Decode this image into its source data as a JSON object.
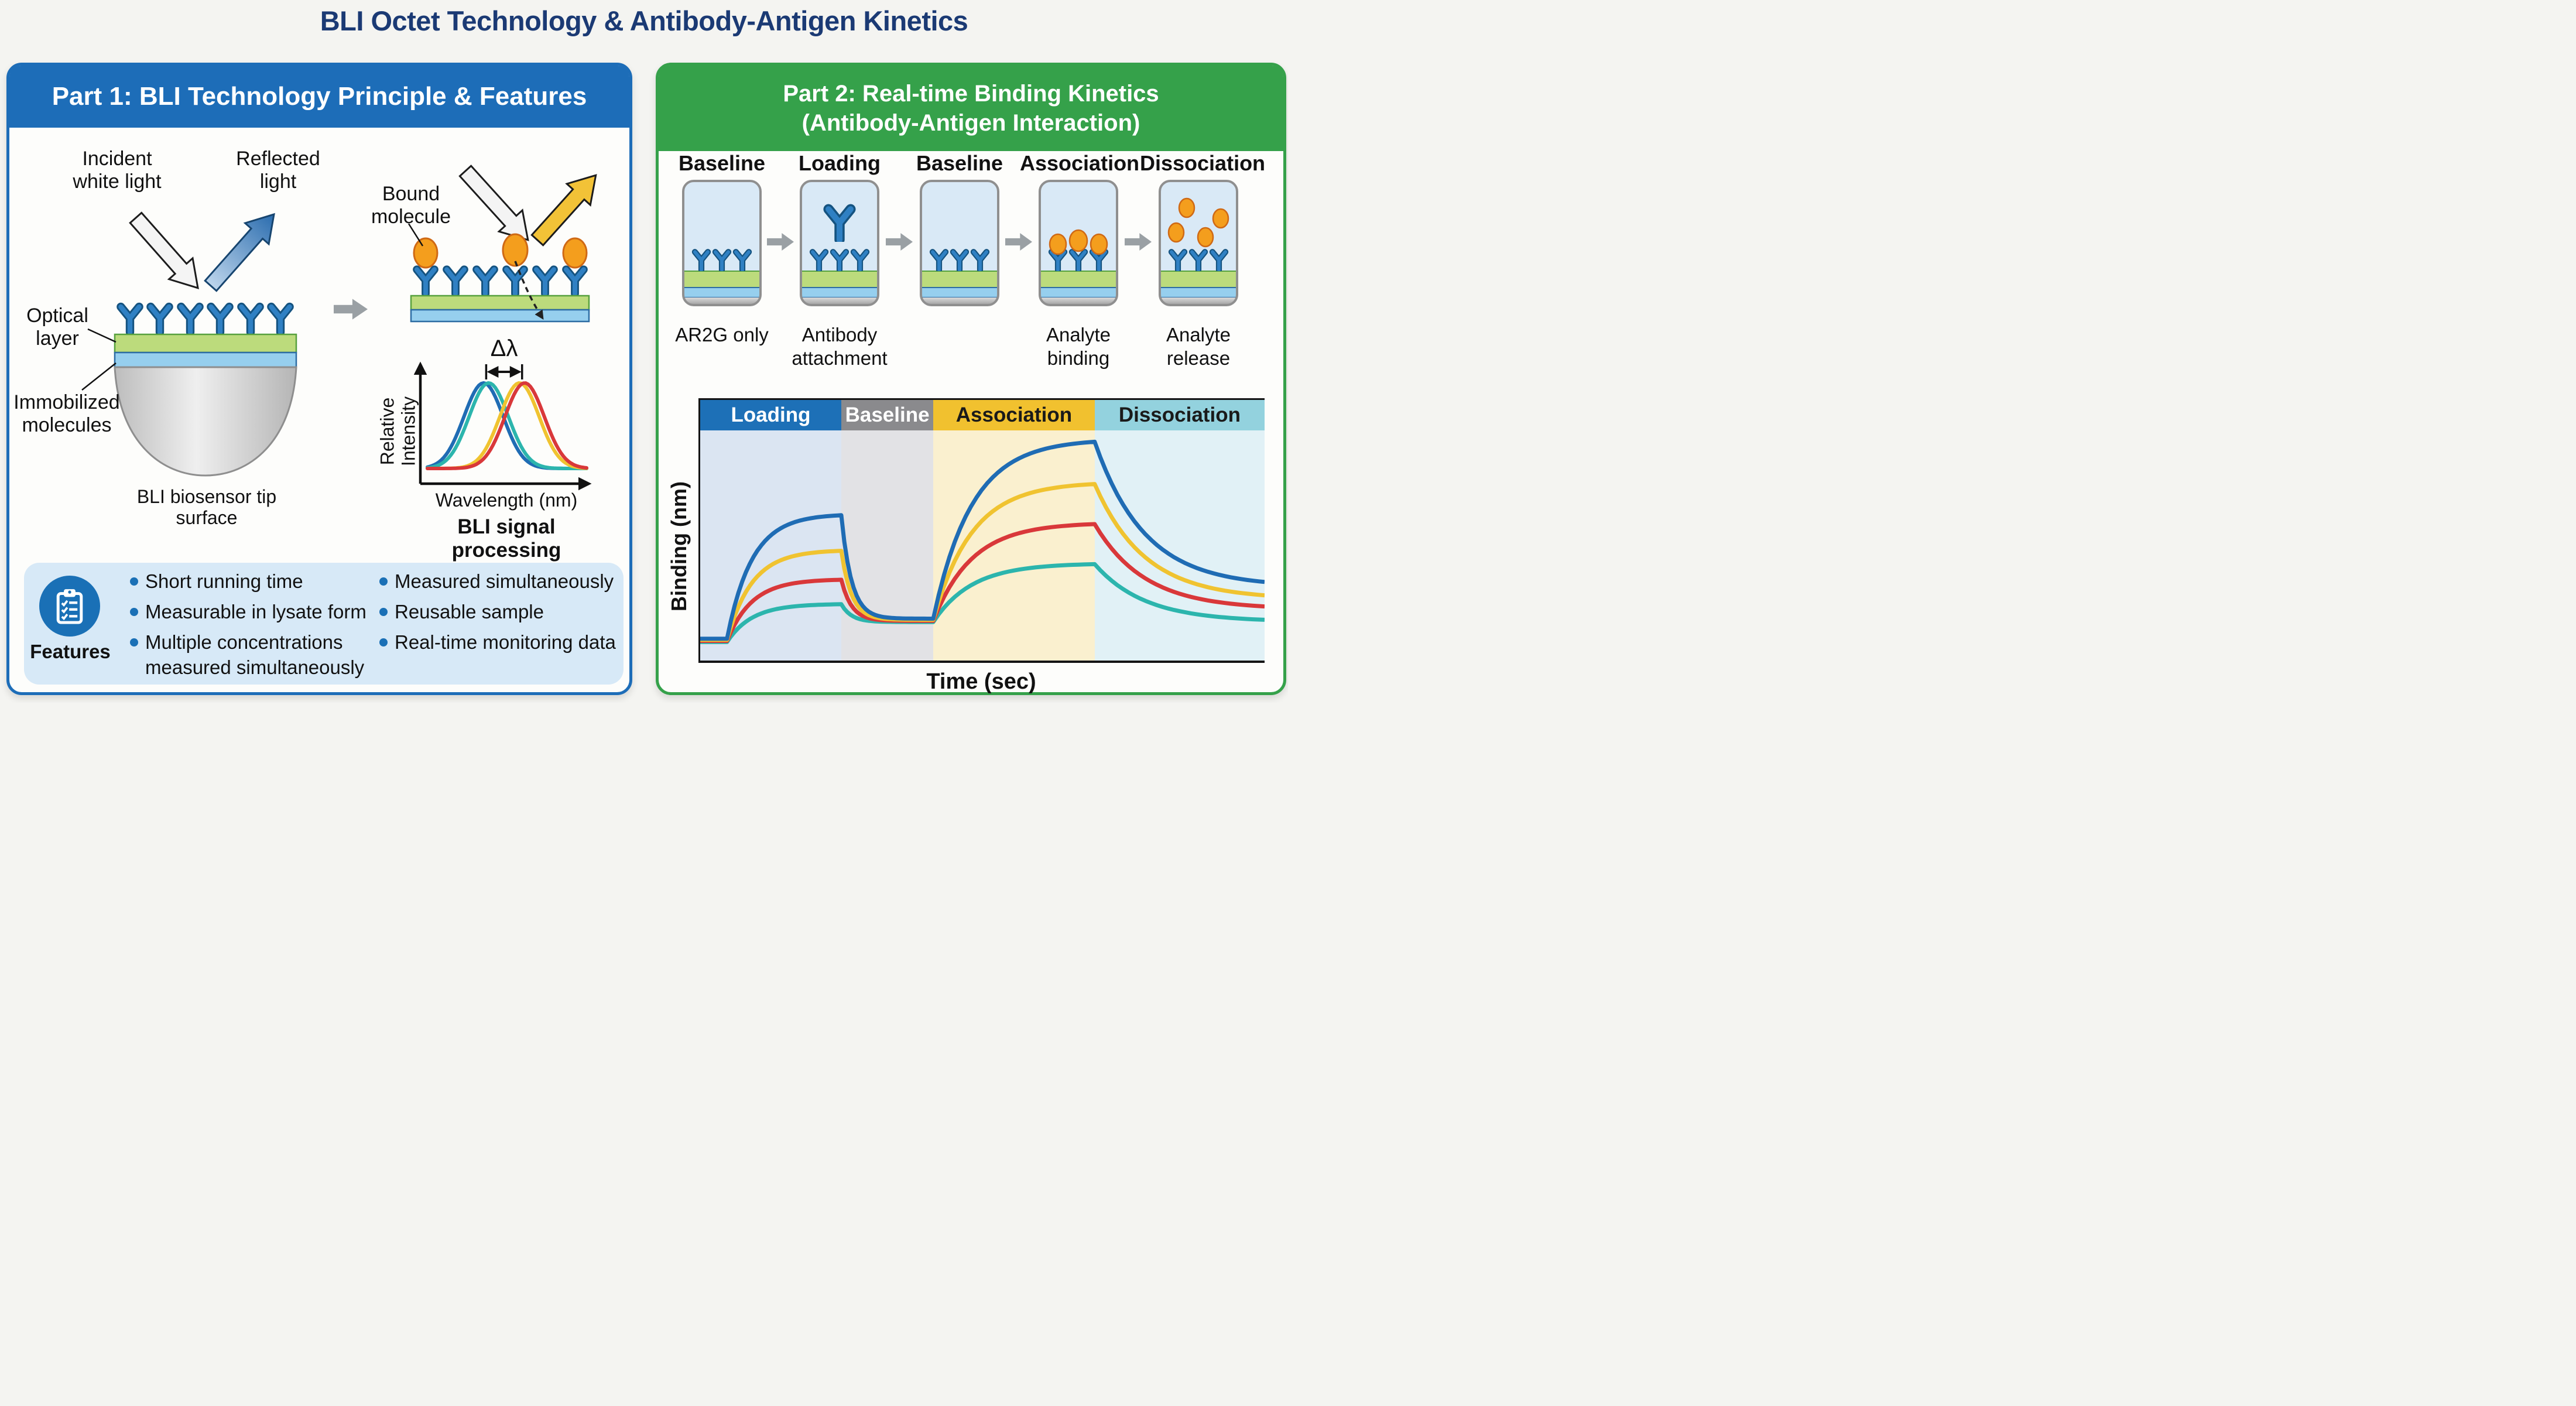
{
  "title": "BLI Octet Technology & Antibody-Antigen Kinetics",
  "colors": {
    "title_text": "#1b3a74",
    "part1_accent": "#1d6db8",
    "part2_accent": "#35a14a",
    "features_bg": "#d7e9f7",
    "antibody_blue": "#2f80c3",
    "analyte_orange": "#f49e1d",
    "optical_layer_green": "#bcdb7c",
    "inner_layer_blue": "#96cfee"
  },
  "part1": {
    "header": "Part 1: BLI Technology Principle & Features",
    "labels": {
      "incident": "Incident\nwhite light",
      "reflected": "Reflected\nlight",
      "optical": "Optical\nlayer",
      "immobilized": "Immobilized\nmolecules",
      "tip_caption": "BLI biosensor tip\nsurface",
      "bound": "Bound\nmolecule",
      "signal_caption": "BLI signal processing"
    },
    "features": {
      "heading": "Features",
      "icon": "checklist-clipboard-icon",
      "col1": [
        "Short running time",
        "Measurable in lysate form",
        "Multiple concentrations\nmeasured simultaneously"
      ],
      "col2": [
        "Measured simultaneously",
        "Reusable sample",
        "Real-time monitoring data"
      ]
    }
  },
  "part2": {
    "header": "Part 2: Real-time Binding Kinetics\n(Antibody-Antigen Interaction)",
    "stages": [
      {
        "label": "Baseline",
        "caption": "AR2G only",
        "depicts": [
          "surface-antibodies"
        ]
      },
      {
        "label": "Loading",
        "caption": "Antibody\nattachment",
        "depicts": [
          "surface-antibodies",
          "free-antibody"
        ]
      },
      {
        "label": "Baseline",
        "caption": "",
        "depicts": [
          "surface-antibodies"
        ]
      },
      {
        "label": "Association",
        "caption": "Analyte\nbinding",
        "depicts": [
          "surface-antibodies",
          "bound-analytes"
        ]
      },
      {
        "label": "Dissociation",
        "caption": "Analyte\nrelease",
        "depicts": [
          "surface-antibodies",
          "released-analytes"
        ]
      }
    ]
  },
  "chart_data": [
    {
      "type": "line",
      "title": "BLI signal processing",
      "xlabel": "Wavelength (nm)",
      "ylabel": "Relative Intensity",
      "annotation": "Δλ",
      "legend": "none",
      "grid": false,
      "peaks": [
        {
          "name": "reference-spectrum-1",
          "color": "#1f6cb4",
          "center": 0.37,
          "sigma": 0.115,
          "height": 1.0
        },
        {
          "name": "reference-spectrum-2",
          "color": "#2cb5ad",
          "center": 0.4,
          "sigma": 0.115,
          "height": 1.0
        },
        {
          "name": "shifted-spectrum-1",
          "color": "#f0c330",
          "center": 0.58,
          "sigma": 0.115,
          "height": 1.0
        },
        {
          "name": "shifted-spectrum-2",
          "color": "#d9383a",
          "center": 0.61,
          "sigma": 0.115,
          "height": 1.0
        }
      ]
    },
    {
      "type": "line",
      "title": "Real-time binding kinetics sensorgram",
      "xlabel": "Time (sec)",
      "ylabel": "Binding (nm)",
      "legend": "none",
      "grid": false,
      "phases": [
        {
          "label": "Loading",
          "width_pct": 25.0,
          "header_color": "#1d70b7",
          "bg_color": "#dbe5f2",
          "text_color": "#ffffff"
        },
        {
          "label": "Baseline",
          "width_pct": 16.3,
          "header_color": "#8a8a8d",
          "bg_color": "#e2e2e5",
          "text_color": "#ffffff"
        },
        {
          "label": "Association",
          "width_pct": 28.6,
          "header_color": "#f1c12f",
          "bg_color": "#faf0cf",
          "text_color": "#1a1a1a"
        },
        {
          "label": "Dissociation",
          "width_pct": 30.1,
          "header_color": "#93d2de",
          "bg_color": "#e1f1f6",
          "text_color": "#1a1a1a"
        }
      ],
      "y_axis_note": "relative binding signal, fraction of plot height",
      "series": [
        {
          "name": "highest-concentration",
          "color": "#1f6cb4",
          "start": 0.085,
          "loading_peak": 0.64,
          "baseline": 0.175,
          "association_peak": 0.97,
          "dissociation_end": 0.34
        },
        {
          "name": "high-concentration",
          "color": "#f0c330",
          "start": 0.08,
          "loading_peak": 0.48,
          "baseline": 0.17,
          "association_peak": 0.78,
          "dissociation_end": 0.28
        },
        {
          "name": "mid-concentration",
          "color": "#d9383a",
          "start": 0.075,
          "loading_peak": 0.35,
          "baseline": 0.165,
          "association_peak": 0.6,
          "dissociation_end": 0.23
        },
        {
          "name": "low-concentration",
          "color": "#2cb5ad",
          "start": 0.07,
          "loading_peak": 0.24,
          "baseline": 0.16,
          "association_peak": 0.42,
          "dissociation_end": 0.17
        }
      ]
    }
  ]
}
